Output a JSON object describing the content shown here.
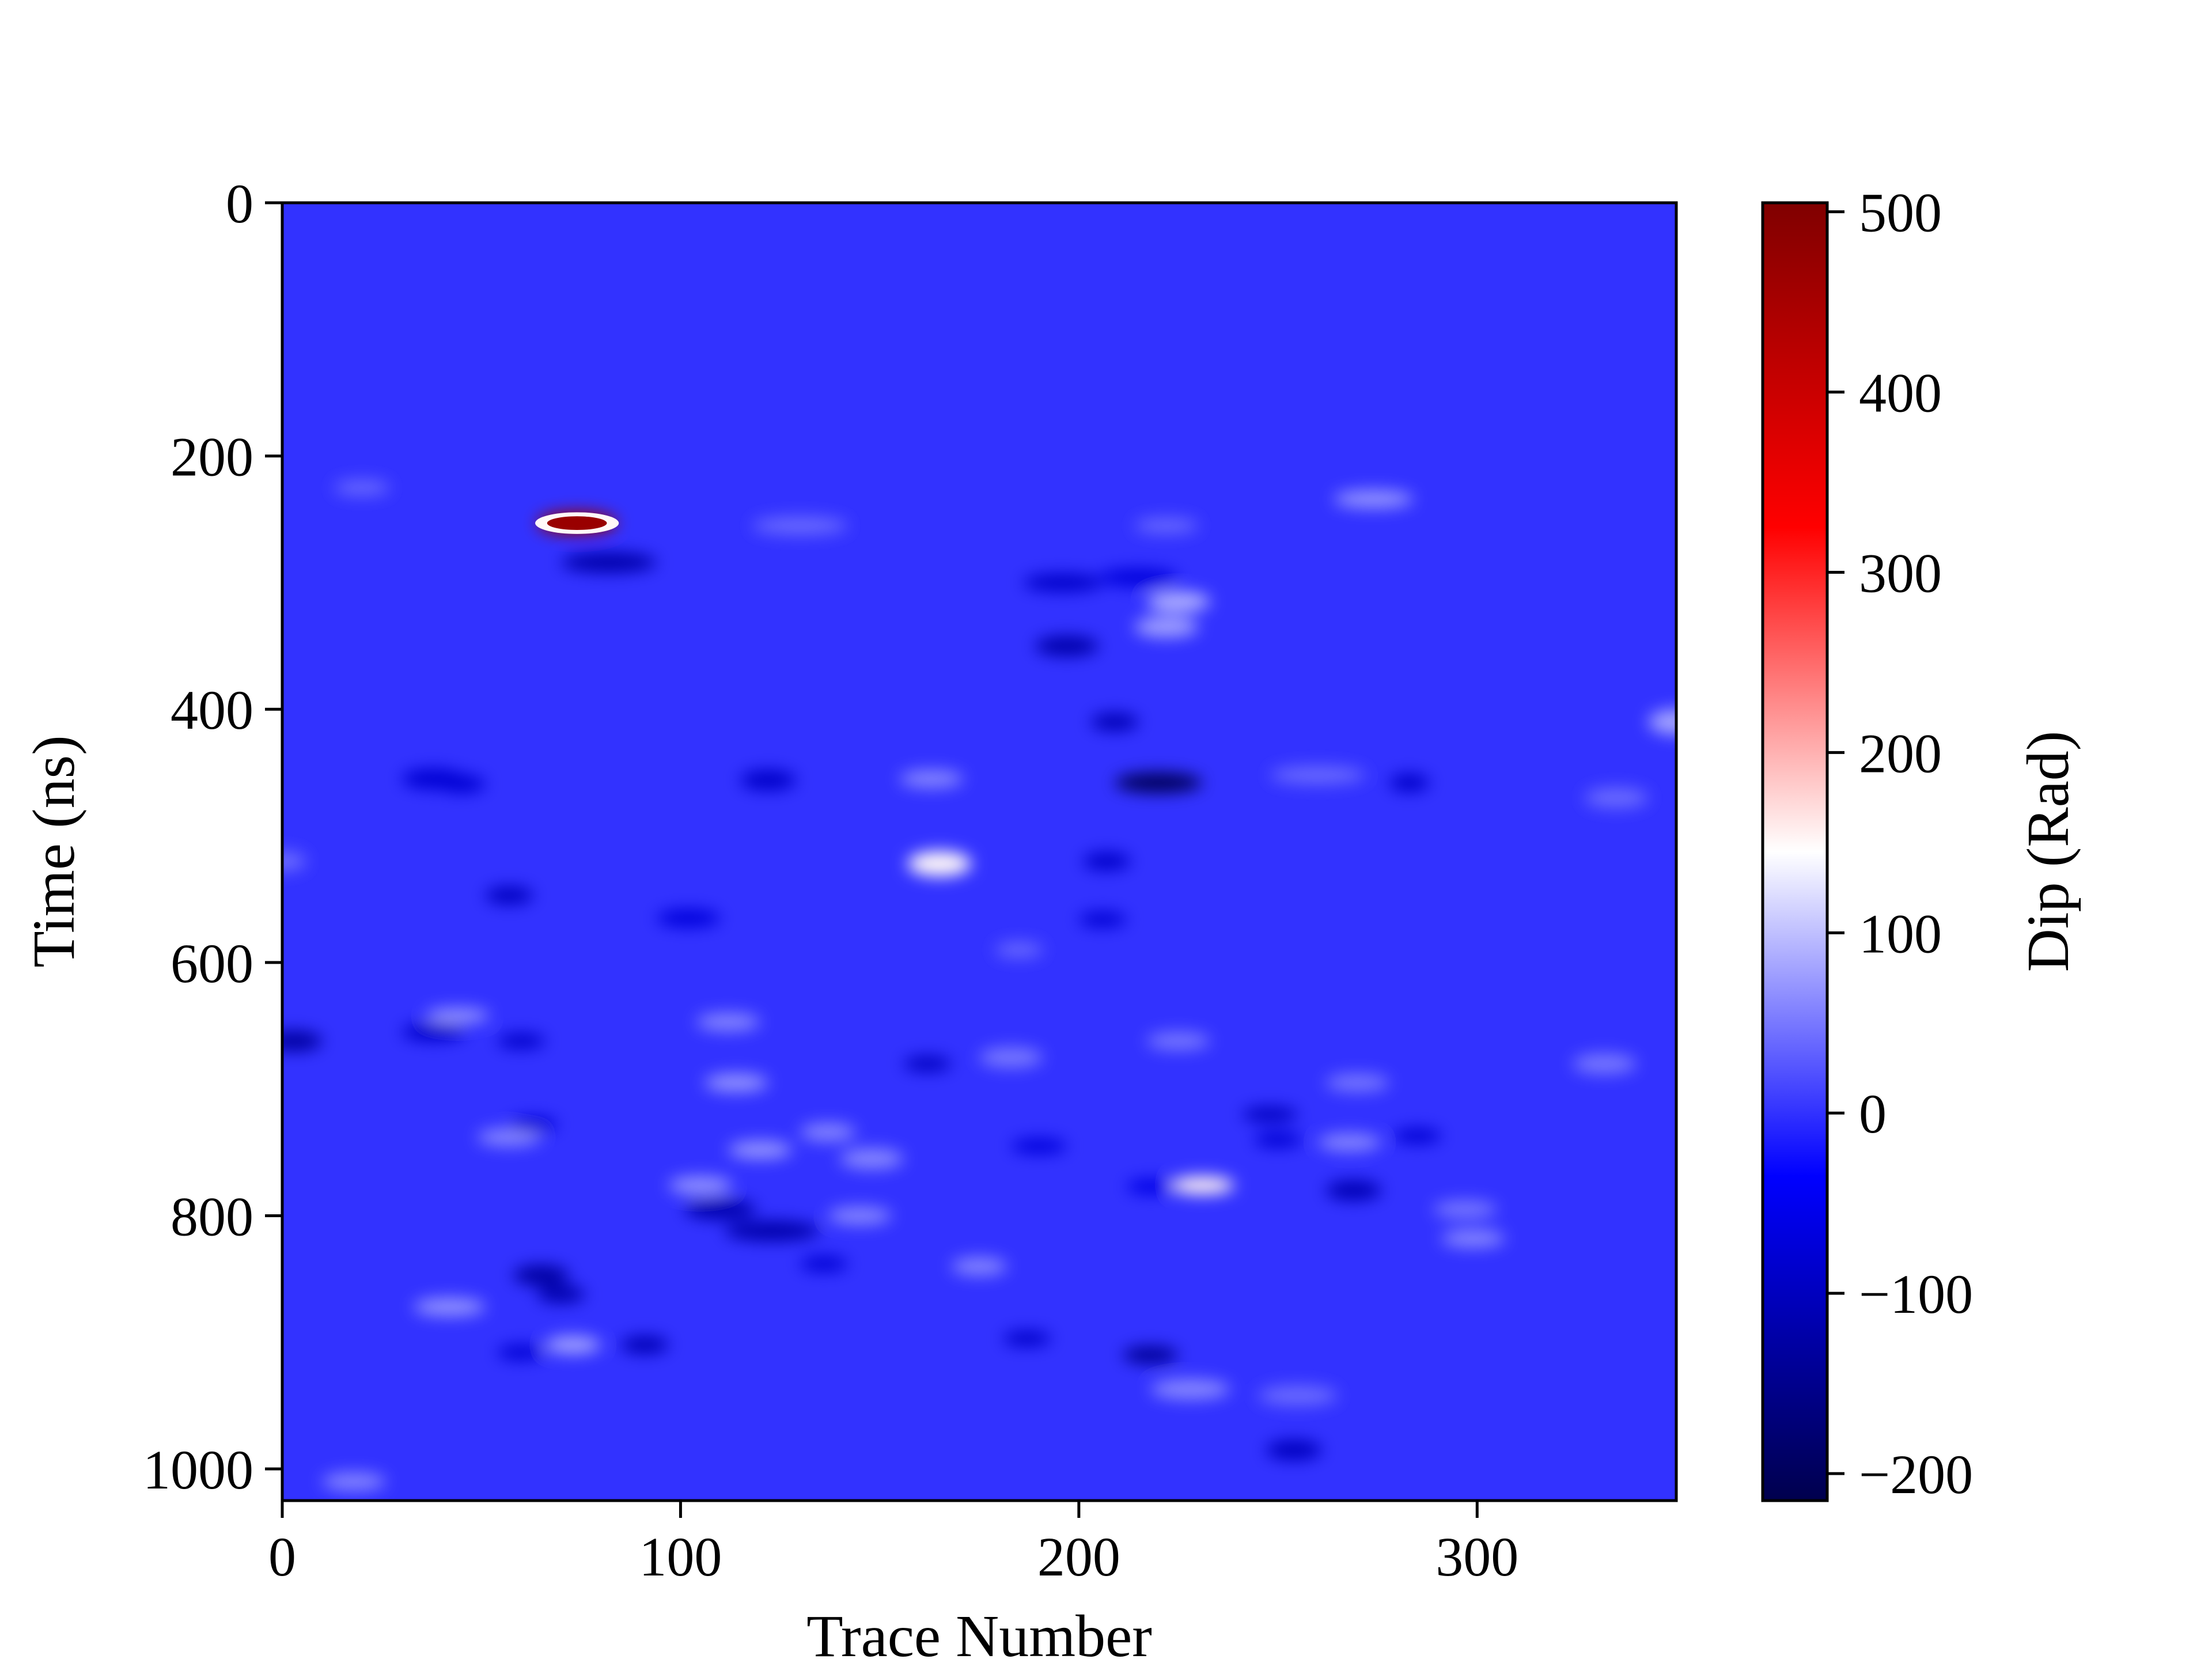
{
  "chart_data": {
    "type": "heatmap",
    "xlabel": "Trace Number",
    "ylabel": "Time (ns)",
    "xlim": [
      0,
      350
    ],
    "ylim": [
      1025,
      0
    ],
    "x_ticks": [
      0,
      100,
      200,
      300
    ],
    "x_tick_labels": [
      "0",
      "100",
      "200",
      "300"
    ],
    "y_ticks": [
      0,
      200,
      400,
      600,
      800,
      1000
    ],
    "y_tick_labels": [
      "0",
      "200",
      "400",
      "600",
      "800",
      "1000"
    ],
    "colorbar": {
      "label": "Dip (Rad)",
      "colormap": "seismic",
      "vmin": -215,
      "vmax": 505,
      "ticks": [
        500,
        400,
        300,
        200,
        100,
        0,
        -100,
        -200
      ],
      "tick_labels": [
        "500",
        "400",
        "300",
        "200",
        "100",
        "0",
        "−100",
        "−200"
      ]
    },
    "background_value": 0,
    "features": [
      {
        "trace": 74,
        "time": 253,
        "value": 470,
        "w": 10,
        "h": 9
      },
      {
        "trace": 82,
        "time": 284,
        "value": -120,
        "w": 12,
        "h": 8
      },
      {
        "trace": 220,
        "time": 458,
        "value": -200,
        "w": 11,
        "h": 8
      },
      {
        "trace": 165,
        "time": 522,
        "value": 150,
        "w": 8,
        "h": 10
      },
      {
        "trace": 231,
        "time": 776,
        "value": 155,
        "w": 8,
        "h": 7
      },
      {
        "trace": 197,
        "time": 350,
        "value": -120,
        "w": 8,
        "h": 8
      },
      {
        "trace": 196,
        "time": 300,
        "value": -90,
        "w": 10,
        "h": 7
      },
      {
        "trace": 215,
        "time": 296,
        "value": -70,
        "w": 10,
        "h": 7
      },
      {
        "trace": 225,
        "time": 315,
        "value": 90,
        "w": 8,
        "h": 8
      },
      {
        "trace": 222,
        "time": 335,
        "value": 80,
        "w": 8,
        "h": 8
      },
      {
        "trace": 209,
        "time": 410,
        "value": -110,
        "w": 6,
        "h": 7
      },
      {
        "trace": 274,
        "time": 234,
        "value": 70,
        "w": 10,
        "h": 7
      },
      {
        "trace": 38,
        "time": 455,
        "value": -80,
        "w": 8,
        "h": 8
      },
      {
        "trace": 45,
        "time": 459,
        "value": -80,
        "w": 6,
        "h": 7
      },
      {
        "trace": 122,
        "time": 456,
        "value": -90,
        "w": 7,
        "h": 8
      },
      {
        "trace": 163,
        "time": 455,
        "value": 60,
        "w": 8,
        "h": 7
      },
      {
        "trace": 283,
        "time": 458,
        "value": -90,
        "w": 5,
        "h": 7
      },
      {
        "trace": 260,
        "time": 452,
        "value": 40,
        "w": 12,
        "h": 7
      },
      {
        "trace": 335,
        "time": 470,
        "value": 40,
        "w": 8,
        "h": 8
      },
      {
        "trace": 350,
        "time": 410,
        "value": 80,
        "w": 7,
        "h": 10
      },
      {
        "trace": 57,
        "time": 547,
        "value": -100,
        "w": 6,
        "h": 7
      },
      {
        "trace": 102,
        "time": 565,
        "value": -70,
        "w": 8,
        "h": 7
      },
      {
        "trace": 207,
        "time": 520,
        "value": -90,
        "w": 6,
        "h": 7
      },
      {
        "trace": 206,
        "time": 566,
        "value": -80,
        "w": 6,
        "h": 6
      },
      {
        "trace": 3,
        "time": 662,
        "value": -130,
        "w": 7,
        "h": 8
      },
      {
        "trace": 38,
        "time": 655,
        "value": -90,
        "w": 8,
        "h": 7
      },
      {
        "trace": 44,
        "time": 642,
        "value": 70,
        "w": 8,
        "h": 6
      },
      {
        "trace": 60,
        "time": 662,
        "value": -90,
        "w": 6,
        "h": 6
      },
      {
        "trace": 112,
        "time": 647,
        "value": 60,
        "w": 8,
        "h": 7
      },
      {
        "trace": 114,
        "time": 695,
        "value": 70,
        "w": 8,
        "h": 7
      },
      {
        "trace": 162,
        "time": 680,
        "value": -100,
        "w": 6,
        "h": 6
      },
      {
        "trace": 183,
        "time": 675,
        "value": 50,
        "w": 8,
        "h": 8
      },
      {
        "trace": 225,
        "time": 662,
        "value": 50,
        "w": 8,
        "h": 7
      },
      {
        "trace": 332,
        "time": 680,
        "value": 50,
        "w": 8,
        "h": 8
      },
      {
        "trace": 270,
        "time": 695,
        "value": 50,
        "w": 8,
        "h": 7
      },
      {
        "trace": 248,
        "time": 720,
        "value": -100,
        "w": 7,
        "h": 6
      },
      {
        "trace": 250,
        "time": 740,
        "value": -80,
        "w": 6,
        "h": 6
      },
      {
        "trace": 268,
        "time": 742,
        "value": 60,
        "w": 8,
        "h": 7
      },
      {
        "trace": 57,
        "time": 738,
        "value": 60,
        "w": 8,
        "h": 7
      },
      {
        "trace": 63,
        "time": 728,
        "value": -80,
        "w": 6,
        "h": 6
      },
      {
        "trace": 120,
        "time": 748,
        "value": 70,
        "w": 8,
        "h": 7
      },
      {
        "trace": 137,
        "time": 734,
        "value": 60,
        "w": 7,
        "h": 7
      },
      {
        "trace": 148,
        "time": 755,
        "value": 60,
        "w": 8,
        "h": 8
      },
      {
        "trace": 105,
        "time": 776,
        "value": 70,
        "w": 8,
        "h": 7
      },
      {
        "trace": 110,
        "time": 795,
        "value": -120,
        "w": 9,
        "h": 8
      },
      {
        "trace": 123,
        "time": 812,
        "value": -120,
        "w": 12,
        "h": 8
      },
      {
        "trace": 145,
        "time": 800,
        "value": 60,
        "w": 8,
        "h": 7
      },
      {
        "trace": 190,
        "time": 745,
        "value": -70,
        "w": 7,
        "h": 6
      },
      {
        "trace": 218,
        "time": 777,
        "value": -60,
        "w": 6,
        "h": 6
      },
      {
        "trace": 269,
        "time": 780,
        "value": -110,
        "w": 7,
        "h": 8
      },
      {
        "trace": 285,
        "time": 737,
        "value": -80,
        "w": 6,
        "h": 6
      },
      {
        "trace": 297,
        "time": 795,
        "value": 50,
        "w": 8,
        "h": 7
      },
      {
        "trace": 299,
        "time": 818,
        "value": 60,
        "w": 8,
        "h": 7
      },
      {
        "trace": 136,
        "time": 838,
        "value": -80,
        "w": 6,
        "h": 6
      },
      {
        "trace": 175,
        "time": 840,
        "value": 60,
        "w": 7,
        "h": 7
      },
      {
        "trace": 65,
        "time": 847,
        "value": -130,
        "w": 7,
        "h": 8
      },
      {
        "trace": 70,
        "time": 862,
        "value": -120,
        "w": 6,
        "h": 7
      },
      {
        "trace": 42,
        "time": 872,
        "value": 70,
        "w": 9,
        "h": 7
      },
      {
        "trace": 73,
        "time": 902,
        "value": 80,
        "w": 7,
        "h": 7
      },
      {
        "trace": 91,
        "time": 902,
        "value": -110,
        "w": 6,
        "h": 7
      },
      {
        "trace": 60,
        "time": 908,
        "value": -80,
        "w": 6,
        "h": 6
      },
      {
        "trace": 187,
        "time": 897,
        "value": -90,
        "w": 6,
        "h": 6
      },
      {
        "trace": 218,
        "time": 910,
        "value": -140,
        "w": 7,
        "h": 7
      },
      {
        "trace": 228,
        "time": 937,
        "value": 60,
        "w": 10,
        "h": 8
      },
      {
        "trace": 255,
        "time": 942,
        "value": 40,
        "w": 10,
        "h": 8
      },
      {
        "trace": 254,
        "time": 985,
        "value": -100,
        "w": 7,
        "h": 8
      },
      {
        "trace": 18,
        "time": 1010,
        "value": 60,
        "w": 8,
        "h": 7
      },
      {
        "trace": 222,
        "time": 255,
        "value": 40,
        "w": 8,
        "h": 6
      },
      {
        "trace": 130,
        "time": 255,
        "value": 40,
        "w": 12,
        "h": 7
      },
      {
        "trace": 20,
        "time": 225,
        "value": 40,
        "w": 7,
        "h": 6
      },
      {
        "trace": 0,
        "time": 520,
        "value": 40,
        "w": 6,
        "h": 8
      },
      {
        "trace": 185,
        "time": 590,
        "value": 40,
        "w": 6,
        "h": 6
      }
    ]
  }
}
